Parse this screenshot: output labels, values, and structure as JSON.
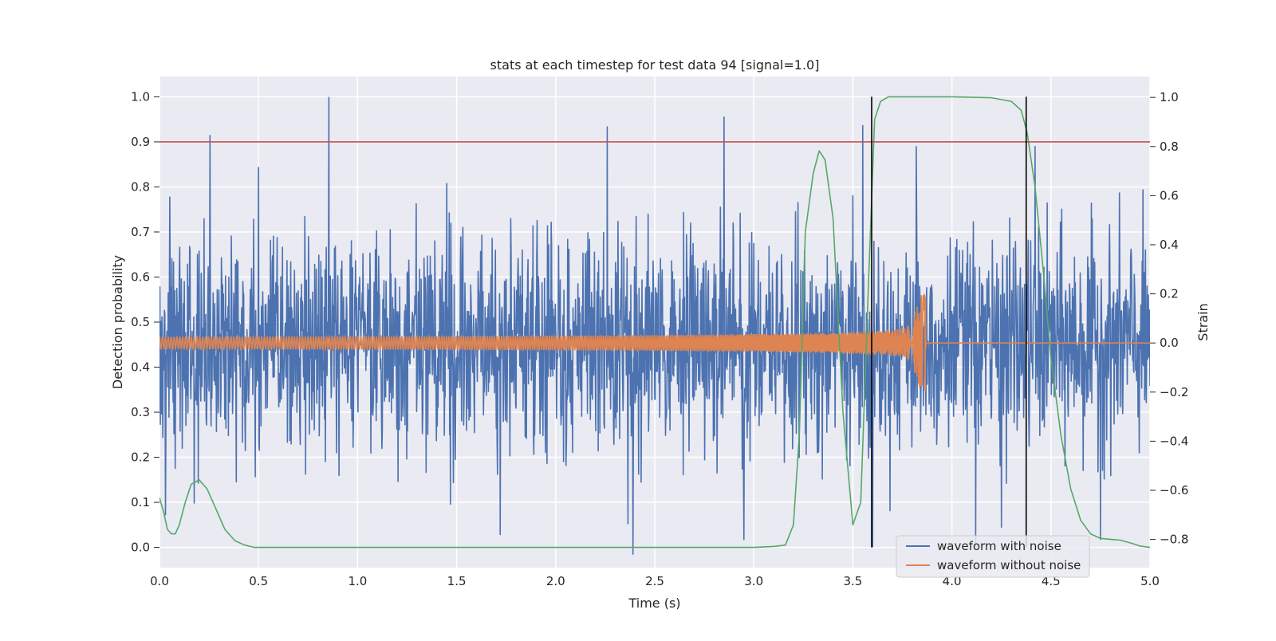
{
  "chart_data": {
    "type": "line",
    "title": "stats at each timestep for test data 94 [signal=1.0]",
    "xlabel": "Time (s)",
    "ylabel_left": "Detection probability",
    "ylabel_right": "Strain",
    "xlim": [
      0.0,
      5.0
    ],
    "ylim_left": [
      -0.045,
      1.045
    ],
    "ylim_right": [
      -0.915,
      1.085
    ],
    "x_ticks": [
      {
        "value": 0.0,
        "label": "0.0"
      },
      {
        "value": 0.5,
        "label": "0.5"
      },
      {
        "value": 1.0,
        "label": "1.0"
      },
      {
        "value": 1.5,
        "label": "1.5"
      },
      {
        "value": 2.0,
        "label": "2.0"
      },
      {
        "value": 2.5,
        "label": "2.5"
      },
      {
        "value": 3.0,
        "label": "3.0"
      },
      {
        "value": 3.5,
        "label": "3.5"
      },
      {
        "value": 4.0,
        "label": "4.0"
      },
      {
        "value": 4.5,
        "label": "4.5"
      },
      {
        "value": 5.0,
        "label": "5.0"
      }
    ],
    "y_left_ticks": [
      {
        "value": 0.0,
        "label": "0.0"
      },
      {
        "value": 0.1,
        "label": "0.1"
      },
      {
        "value": 0.2,
        "label": "0.2"
      },
      {
        "value": 0.3,
        "label": "0.3"
      },
      {
        "value": 0.4,
        "label": "0.4"
      },
      {
        "value": 0.5,
        "label": "0.5"
      },
      {
        "value": 0.6,
        "label": "0.6"
      },
      {
        "value": 0.7,
        "label": "0.7"
      },
      {
        "value": 0.8,
        "label": "0.8"
      },
      {
        "value": 0.9,
        "label": "0.9"
      },
      {
        "value": 1.0,
        "label": "1.0"
      }
    ],
    "y_right_ticks": [
      {
        "value": -0.8,
        "label": "−0.8"
      },
      {
        "value": -0.6,
        "label": "−0.6"
      },
      {
        "value": -0.4,
        "label": "−0.4"
      },
      {
        "value": -0.2,
        "label": "−0.2"
      },
      {
        "value": 0.0,
        "label": "0.0"
      },
      {
        "value": 0.2,
        "label": "0.2"
      },
      {
        "value": 0.4,
        "label": "0.4"
      },
      {
        "value": 0.6,
        "label": "0.6"
      },
      {
        "value": 0.8,
        "label": "0.8"
      },
      {
        "value": 1.0,
        "label": "1.0"
      }
    ],
    "threshold": {
      "y": 0.9,
      "color": "#c44e52"
    },
    "vertical_markers": [
      {
        "x": 3.595,
        "ymin": 0.0,
        "ymax": 1.0,
        "color": "#000000"
      },
      {
        "x": 4.375,
        "ymin": 0.0,
        "ymax": 1.0,
        "color": "#000000"
      }
    ],
    "grid": true,
    "background": "#eaeaf2",
    "legend": {
      "placement": "lower-right",
      "entries": [
        {
          "label": "waveform with noise",
          "color": "#4c72b0"
        },
        {
          "label": "waveform without noise",
          "color": "#dd8452"
        }
      ]
    },
    "series": [
      {
        "name": "waveform with noise",
        "axis": "right",
        "color": "#4c72b0",
        "kind": "noise",
        "center": 0.0,
        "typical_range": [
          -0.42,
          0.42
        ],
        "peaks": [
          {
            "x": 0.255,
            "y": 0.845
          },
          {
            "x": 0.855,
            "y": 1.0
          },
          {
            "x": 0.5,
            "y": 0.715
          },
          {
            "x": 2.26,
            "y": 0.88
          },
          {
            "x": 2.85,
            "y": 0.92
          },
          {
            "x": 3.55,
            "y": 0.885
          },
          {
            "x": 3.82,
            "y": 0.8
          },
          {
            "x": 4.42,
            "y": 0.8
          },
          {
            "x": 0.03,
            "y": -0.7
          },
          {
            "x": 2.39,
            "y": -0.86
          },
          {
            "x": 1.72,
            "y": -0.78
          },
          {
            "x": 3.6,
            "y": -0.83
          },
          {
            "x": 4.12,
            "y": -0.83
          },
          {
            "x": 4.75,
            "y": -0.8
          },
          {
            "x": 2.95,
            "y": -0.8
          },
          {
            "x": 3.5,
            "y": 0.6
          },
          {
            "x": 1.45,
            "y": 0.65
          },
          {
            "x": 4.25,
            "y": -0.75
          }
        ]
      },
      {
        "name": "waveform without noise",
        "axis": "right",
        "color": "#dd8452",
        "kind": "chirp",
        "amplitude_start": 0.025,
        "amplitude_peak": 0.2,
        "merger_time": 3.87,
        "zero_after_merger": 0.0
      },
      {
        "axis": "left",
        "color": "#55a868",
        "kind": "probability",
        "x": [
          0.0,
          0.02,
          0.04,
          0.06,
          0.08,
          0.1,
          0.13,
          0.16,
          0.2,
          0.24,
          0.28,
          0.33,
          0.38,
          0.43,
          0.48,
          0.55,
          1.0,
          2.0,
          2.5,
          3.0,
          3.1,
          3.16,
          3.2,
          3.23,
          3.26,
          3.3,
          3.33,
          3.36,
          3.4,
          3.45,
          3.5,
          3.54,
          3.58,
          3.61,
          3.64,
          3.68,
          3.75,
          4.0,
          4.2,
          4.3,
          4.35,
          4.38,
          4.42,
          4.46,
          4.5,
          4.55,
          4.6,
          4.65,
          4.7,
          4.75,
          4.8,
          4.85,
          4.9,
          4.95,
          5.0
        ],
        "y": [
          0.11,
          0.08,
          0.04,
          0.03,
          0.03,
          0.05,
          0.1,
          0.14,
          0.15,
          0.13,
          0.09,
          0.04,
          0.015,
          0.005,
          0.0,
          0.0,
          0.0,
          0.0,
          0.0,
          0.0,
          0.002,
          0.005,
          0.05,
          0.25,
          0.7,
          0.83,
          0.88,
          0.86,
          0.73,
          0.3,
          0.05,
          0.1,
          0.6,
          0.95,
          0.99,
          1.0,
          1.0,
          1.0,
          0.998,
          0.99,
          0.97,
          0.92,
          0.8,
          0.62,
          0.42,
          0.25,
          0.13,
          0.06,
          0.03,
          0.02,
          0.018,
          0.016,
          0.01,
          0.003,
          0.0
        ]
      }
    ]
  }
}
